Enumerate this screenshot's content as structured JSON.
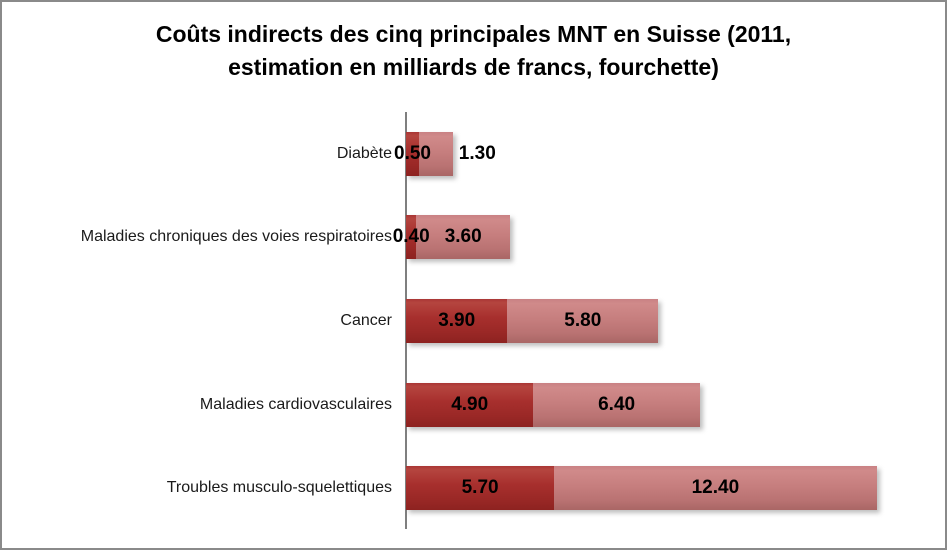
{
  "title": {
    "line1": "Coûts indirects des cinq principales MNT en Suisse (2011,",
    "line2": "estimation en milliards de francs, fourchette)"
  },
  "chart_data": {
    "type": "bar",
    "orientation": "horizontal",
    "stacked": true,
    "title": "Coûts indirects des cinq principales MNT en Suisse (2011, estimation en milliards de francs, fourchette)",
    "unit": "milliards de francs",
    "legend": "none",
    "grid": "off",
    "categories": [
      "Diabète",
      "Maladies chroniques des voies respiratoires",
      "Cancer",
      "Maladies cardiovasculaires",
      "Troubles musculo-squelettiques"
    ],
    "series": [
      {
        "name": "segment-dark",
        "color": "#A33230",
        "values": [
          0.5,
          0.4,
          3.9,
          4.9,
          5.7
        ],
        "labels": [
          "0.50",
          "0.40",
          "3.90",
          "4.90",
          "5.70"
        ]
      },
      {
        "name": "segment-light",
        "color": "#C67E7E",
        "values": [
          1.3,
          3.6,
          5.8,
          6.4,
          12.4
        ],
        "labels": [
          "1.30",
          "3.60",
          "5.80",
          "6.40",
          "12.40"
        ]
      }
    ],
    "axis_color": "#7f7f7f",
    "frame_color": "#8a8a8a"
  }
}
